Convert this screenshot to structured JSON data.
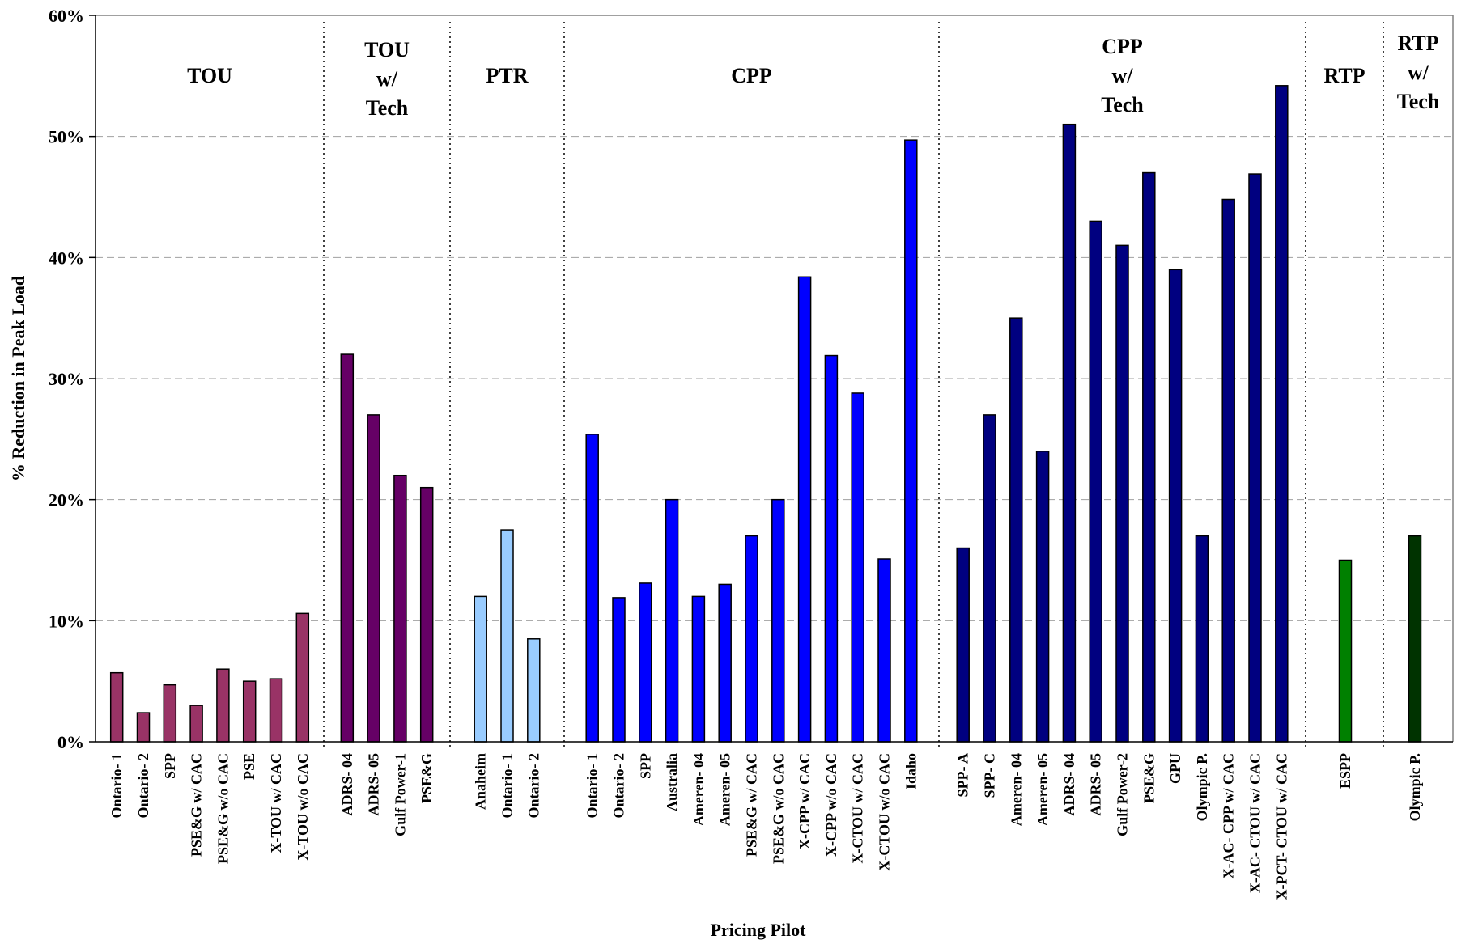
{
  "chart_data": {
    "type": "bar",
    "title": "",
    "xlabel": "Pricing Pilot",
    "ylabel": "% Reduction in Peak Load",
    "ylim": [
      0,
      60
    ],
    "yticks": [
      "0%",
      "10%",
      "20%",
      "30%",
      "40%",
      "50%",
      "60%"
    ],
    "grid": "horizontal-dashed",
    "groups": [
      {
        "name": "TOU",
        "label_lines": [
          "TOU"
        ],
        "color": "#993366",
        "bars": [
          {
            "label": "Ontario- 1",
            "value": 5.7
          },
          {
            "label": "Ontario- 2",
            "value": 2.4
          },
          {
            "label": "SPP",
            "value": 4.7
          },
          {
            "label": "PSE&G w/ CAC",
            "value": 3.0
          },
          {
            "label": "PSE&G w/o CAC",
            "value": 6.0
          },
          {
            "label": "PSE",
            "value": 5.0
          },
          {
            "label": "X-TOU w/ CAC",
            "value": 5.2
          },
          {
            "label": "X-TOU w/o CAC",
            "value": 10.6
          }
        ]
      },
      {
        "name": "TOU w/ Tech",
        "label_lines": [
          "TOU",
          "w/",
          "Tech"
        ],
        "color": "#660066",
        "bars": [
          {
            "label": "ADRS- 04",
            "value": 32.0
          },
          {
            "label": "ADRS- 05",
            "value": 27.0
          },
          {
            "label": "Gulf Power-1",
            "value": 22.0
          },
          {
            "label": "PSE&G",
            "value": 21.0
          }
        ]
      },
      {
        "name": "PTR",
        "label_lines": [
          "PTR"
        ],
        "color": "#99CCFF",
        "bars": [
          {
            "label": "Anaheim",
            "value": 12.0
          },
          {
            "label": "Ontario- 1",
            "value": 17.5
          },
          {
            "label": "Ontario- 2",
            "value": 8.5
          }
        ]
      },
      {
        "name": "CPP",
        "label_lines": [
          "CPP"
        ],
        "color": "#0000FF",
        "bars": [
          {
            "label": "Ontario- 1",
            "value": 25.4
          },
          {
            "label": "Ontario- 2",
            "value": 11.9
          },
          {
            "label": "SPP",
            "value": 13.1
          },
          {
            "label": "Australia",
            "value": 20.0
          },
          {
            "label": "Ameren- 04",
            "value": 12.0
          },
          {
            "label": "Ameren- 05",
            "value": 13.0
          },
          {
            "label": "PSE&G w/ CAC",
            "value": 17.0
          },
          {
            "label": "PSE&G w/o CAC",
            "value": 20.0
          },
          {
            "label": "X-CPP w/ CAC",
            "value": 38.4
          },
          {
            "label": "X-CPP w/o CAC",
            "value": 31.9
          },
          {
            "label": "X-CTOU w/ CAC",
            "value": 28.8
          },
          {
            "label": "X-CTOU w/o CAC",
            "value": 15.1
          },
          {
            "label": "Idaho",
            "value": 49.7
          }
        ]
      },
      {
        "name": "CPP w/ Tech",
        "label_lines": [
          "CPP",
          "w/",
          "Tech"
        ],
        "color": "#000080",
        "bars": [
          {
            "label": "SPP- A",
            "value": 16.0
          },
          {
            "label": "SPP- C",
            "value": 27.0
          },
          {
            "label": "Ameren- 04",
            "value": 35.0
          },
          {
            "label": "Ameren- 05",
            "value": 24.0
          },
          {
            "label": "ADRS- 04",
            "value": 51.0
          },
          {
            "label": "ADRS- 05",
            "value": 43.0
          },
          {
            "label": "Gulf Power-2",
            "value": 41.0
          },
          {
            "label": "PSE&G",
            "value": 47.0
          },
          {
            "label": "GPU",
            "value": 39.0
          },
          {
            "label": "Olympic P.",
            "value": 17.0
          },
          {
            "label": "X-AC- CPP w/ CAC",
            "value": 44.8
          },
          {
            "label": "X-AC- CTOU w/ CAC",
            "value": 46.9
          },
          {
            "label": "X-PCT- CTOU w/ CAC",
            "value": 54.2
          }
        ]
      },
      {
        "name": "RTP",
        "label_lines": [
          "RTP"
        ],
        "color": "#008000",
        "bars": [
          {
            "label": "ESPP",
            "value": 15.0
          }
        ]
      },
      {
        "name": "RTP w/ Tech",
        "label_lines": [
          "RTP",
          "w/",
          "Tech"
        ],
        "color": "#003300",
        "bars": [
          {
            "label": "Olympic P.",
            "value": 17.0
          }
        ]
      }
    ]
  }
}
